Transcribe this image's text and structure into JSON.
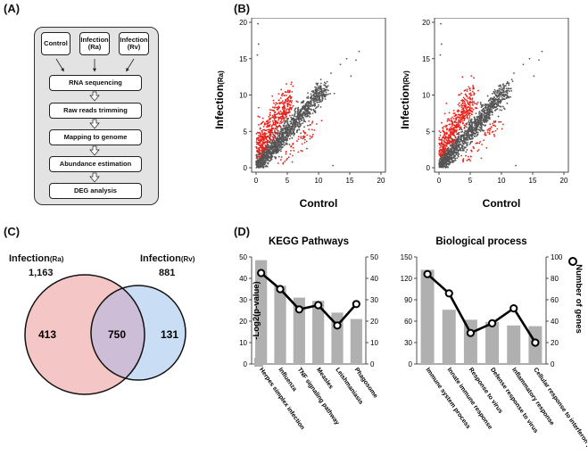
{
  "panel_labels": {
    "a": "(A)",
    "b": "(B)",
    "c": "(C)",
    "d": "(D)"
  },
  "flowchart": {
    "inputs": [
      {
        "line1": "Control",
        "line2": ""
      },
      {
        "line1": "Infection",
        "line2": "(Ra)"
      },
      {
        "line1": "Infection",
        "line2": "(Rv)"
      }
    ],
    "steps": [
      "RNA sequencing",
      "Raw reads trimming",
      "Mapping to genome",
      "Abundance estimation",
      "DEG analysis"
    ]
  },
  "scatter": {
    "xlabel": "Control",
    "plots": [
      {
        "ylabel_main": "Infection",
        "ylabel_sub": "(Ra)"
      },
      {
        "ylabel_main": "Infection",
        "ylabel_sub": "(Rv)"
      }
    ],
    "ticks": [
      "0",
      "5",
      "10",
      "15",
      "20"
    ],
    "colors": {
      "all_genes": "#555555",
      "deg": "#e8221b"
    }
  },
  "venn": {
    "left": {
      "name": "Infection",
      "sub": "(Ra)",
      "total": "1,163",
      "only": "413",
      "color": "#f5c6c6"
    },
    "right": {
      "name": "Infection",
      "sub": "(Rv)",
      "total": "881",
      "only": "131",
      "color": "#c9def5"
    },
    "overlap": "750",
    "overlap_color": "#cdbdd6"
  },
  "chart_data": [
    {
      "type": "bar",
      "title": "KEGG Pathways",
      "categories": [
        "Herpes simplex infection",
        "Influenza",
        "TNF signaling pathway",
        "Measles",
        "Leishmaniasis",
        "Phagosome"
      ],
      "series": [
        {
          "name": "-Log2(p-value)",
          "axis": "left",
          "style": "bar",
          "values": [
            48.5,
            36.5,
            31,
            29.5,
            24,
            21
          ]
        },
        {
          "name": "Number of genes",
          "axis": "right",
          "style": "line",
          "values": [
            42.5,
            35,
            25.5,
            27.5,
            18,
            28
          ]
        }
      ],
      "ylim_left": [
        0,
        50
      ],
      "ylim_right": [
        0,
        50
      ],
      "yticks_left": [
        "0",
        "10",
        "20",
        "30",
        "40",
        "50"
      ],
      "yticks_right": [
        "0",
        "10",
        "20",
        "30",
        "40",
        "50"
      ]
    },
    {
      "type": "bar",
      "title": "Biological process",
      "categories": [
        "Immune system process",
        "Innate immune response",
        "Response to virus",
        "Defense response to virus",
        "Inflammatory response",
        "Cellular response to interferon β"
      ],
      "series": [
        {
          "name": "-Log2(p-value)",
          "axis": "left",
          "style": "bar",
          "values": [
            132,
            76,
            62,
            59,
            54,
            53
          ]
        },
        {
          "name": "Number of genes",
          "axis": "right",
          "style": "line",
          "values": [
            84,
            66,
            29,
            38,
            52,
            20
          ]
        }
      ],
      "ylim_left": [
        0,
        150
      ],
      "ylim_right": [
        0,
        100
      ],
      "yticks_left": [
        "0",
        "30",
        "60",
        "90",
        "120",
        "150"
      ],
      "yticks_right": [
        "0",
        "20",
        "40",
        "60",
        "80",
        "100"
      ]
    }
  ],
  "legend": {
    "bar_label": "-Log2(p-value)",
    "line_label": "Number of genes",
    "bar_color": "#b0b0b0",
    "line_color": "#000000"
  }
}
